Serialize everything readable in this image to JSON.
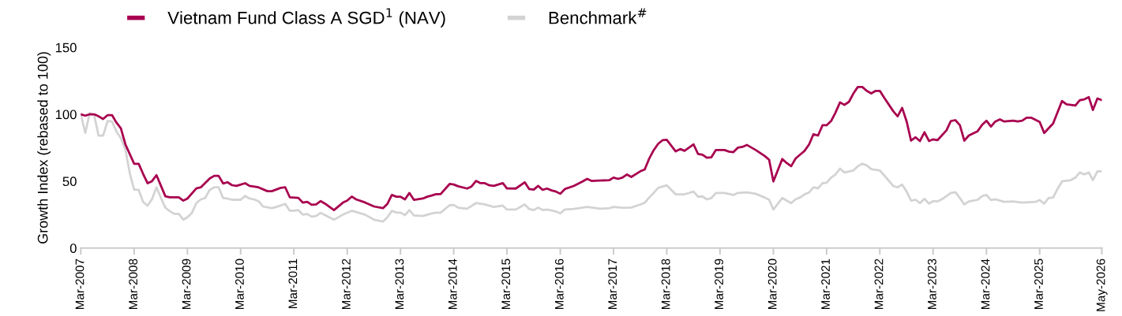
{
  "chart_data": {
    "type": "line",
    "ylabel": "Growth Index (rebased to 100)",
    "ylim": [
      0,
      150
    ],
    "yticks": [
      0,
      50,
      100,
      150
    ],
    "xlim": [
      "2007-03",
      "2026-05"
    ],
    "xticks": [
      {
        "value": "2007-03",
        "label": "Mar-2007"
      },
      {
        "value": "2008-03",
        "label": "Mar-2008"
      },
      {
        "value": "2009-03",
        "label": "Mar-2009"
      },
      {
        "value": "2010-03",
        "label": "Mar-2010"
      },
      {
        "value": "2011-03",
        "label": "Mar-2011"
      },
      {
        "value": "2012-03",
        "label": "Mar-2012"
      },
      {
        "value": "2013-03",
        "label": "Mar-2013"
      },
      {
        "value": "2014-03",
        "label": "Mar-2014"
      },
      {
        "value": "2015-03",
        "label": "Mar-2015"
      },
      {
        "value": "2016-03",
        "label": "Mar-2016"
      },
      {
        "value": "2017-03",
        "label": "Mar-2017"
      },
      {
        "value": "2018-03",
        "label": "Mar-2018"
      },
      {
        "value": "2019-03",
        "label": "Mar-2019"
      },
      {
        "value": "2020-03",
        "label": "Mar-2020"
      },
      {
        "value": "2021-03",
        "label": "Mar-2021"
      },
      {
        "value": "2022-03",
        "label": "Mar-2022"
      },
      {
        "value": "2023-03",
        "label": "Mar-2023"
      },
      {
        "value": "2024-03",
        "label": "Mar-2024"
      },
      {
        "value": "2025-03",
        "label": "Mar-2025"
      },
      {
        "value": "2026-05",
        "label": "May-2026"
      }
    ],
    "grid": false,
    "legend": "top",
    "marker": "none",
    "line_style": "solid",
    "series": [
      {
        "name": "Benchmark$^{#}$",
        "color": "#d3d3d3",
        "x": [
          "2007-03",
          "2007-04",
          "2007-05",
          "2007-06",
          "2007-07",
          "2007-08",
          "2007-09",
          "2007-10",
          "2007-11",
          "2007-12",
          "2008-01",
          "2008-02",
          "2008-03",
          "2008-04",
          "2008-05",
          "2008-06",
          "2008-07",
          "2008-08",
          "2008-09",
          "2008-10",
          "2008-11",
          "2008-12",
          "2009-01",
          "2009-02",
          "2009-03",
          "2009-04",
          "2009-05",
          "2009-06",
          "2009-07",
          "2009-08",
          "2009-09",
          "2009-10",
          "2009-11",
          "2009-12",
          "2010-01",
          "2010-03",
          "2010-04",
          "2010-05",
          "2010-06",
          "2010-07",
          "2010-08",
          "2010-10",
          "2010-11",
          "2011-01",
          "2011-02",
          "2011-03",
          "2011-04",
          "2011-05",
          "2011-06",
          "2011-07",
          "2011-08",
          "2011-09",
          "2011-10",
          "2011-12",
          "2012-02",
          "2012-04",
          "2012-07",
          "2012-09",
          "2012-11",
          "2012-12",
          "2013-01",
          "2013-02",
          "2013-03",
          "2013-04",
          "2013-05",
          "2013-06",
          "2013-08",
          "2013-10",
          "2013-11",
          "2013-12",
          "2014-02",
          "2014-03",
          "2014-04",
          "2014-06",
          "2014-08",
          "2014-10",
          "2014-12",
          "2015-02",
          "2015-03",
          "2015-05",
          "2015-07",
          "2015-08",
          "2015-09",
          "2015-10",
          "2015-11",
          "2015-12",
          "2016-02",
          "2016-03",
          "2016-04",
          "2016-06",
          "2016-09",
          "2016-12",
          "2017-02",
          "2017-03",
          "2017-05",
          "2017-07",
          "2017-09",
          "2017-10",
          "2017-11",
          "2017-12",
          "2018-01",
          "2018-03",
          "2018-05",
          "2018-07",
          "2018-09",
          "2018-10",
          "2018-11",
          "2018-12",
          "2019-01",
          "2019-02",
          "2019-04",
          "2019-06",
          "2019-07",
          "2019-09",
          "2019-11",
          "2020-01",
          "2020-02",
          "2020-03",
          "2020-05",
          "2020-07",
          "2020-08",
          "2020-09",
          "2020-10",
          "2020-11",
          "2020-12",
          "2021-01",
          "2021-02",
          "2021-03",
          "2021-04",
          "2021-05",
          "2021-06",
          "2021-07",
          "2021-09",
          "2021-10",
          "2021-11",
          "2021-12",
          "2022-01",
          "2022-03",
          "2022-04",
          "2022-06",
          "2022-07",
          "2022-08",
          "2022-09",
          "2022-10",
          "2022-11",
          "2022-12",
          "2023-01",
          "2023-02",
          "2023-03",
          "2023-04",
          "2023-05",
          "2023-07",
          "2023-08",
          "2023-09",
          "2023-10",
          "2023-11",
          "2024-01",
          "2024-02",
          "2024-03",
          "2024-04",
          "2024-05",
          "2024-07",
          "2024-09",
          "2024-11",
          "2025-02",
          "2025-03",
          "2025-04",
          "2025-05",
          "2025-06",
          "2025-07",
          "2025-08",
          "2025-10",
          "2025-11",
          "2025-12",
          "2026-01",
          "2026-02",
          "2026-03",
          "2026-04",
          "2026-05"
        ],
        "values": [
          100,
          86,
          101,
          99.4,
          84,
          84,
          95,
          94.7,
          87,
          82,
          73.7,
          55.5,
          43.7,
          43.5,
          34.5,
          31.7,
          36.5,
          45.4,
          37.4,
          30.2,
          27.5,
          25.6,
          25.6,
          21.2,
          23,
          26.3,
          33.6,
          36.4,
          37.4,
          43.5,
          45.4,
          45.4,
          37.4,
          37,
          36.1,
          36.1,
          39,
          37,
          36.4,
          35.1,
          31.1,
          29.8,
          30.7,
          33,
          27.9,
          27.9,
          28.4,
          25,
          25.4,
          23.5,
          24,
          26.3,
          24.6,
          21.2,
          25,
          27.9,
          25,
          21.2,
          19.8,
          23,
          27.9,
          26.5,
          26.5,
          24.6,
          28.4,
          24.4,
          24,
          25.9,
          26.5,
          26.5,
          32,
          32.2,
          30.2,
          29.4,
          33.6,
          32.6,
          30.7,
          31.7,
          28.8,
          28.8,
          32.6,
          29.2,
          28.4,
          30.3,
          28.4,
          28.8,
          27.3,
          25.9,
          28.8,
          29.2,
          30.7,
          29.4,
          29.8,
          30.7,
          30.1,
          30.3,
          32.6,
          33.9,
          37.8,
          41.2,
          45,
          46.9,
          40.2,
          40.2,
          42.2,
          38.4,
          38.6,
          36.4,
          37.4,
          41.2,
          41.2,
          39.7,
          41.2,
          41.6,
          40.6,
          37.8,
          36.1,
          28.8,
          37.4,
          33.6,
          36.5,
          37.8,
          40.2,
          41.6,
          45.4,
          44.6,
          48.5,
          48.8,
          52.7,
          55,
          59.4,
          56.5,
          58,
          61.2,
          63.1,
          61.8,
          59,
          58,
          54.2,
          46.4,
          45.4,
          47.5,
          42.2,
          35.5,
          36.1,
          33.6,
          36.8,
          33.2,
          35.1,
          34.9,
          36.5,
          41.2,
          41.8,
          37.4,
          32.6,
          34.9,
          36.1,
          38.9,
          39.7,
          35.9,
          36.5,
          34.5,
          34.9,
          33.9,
          34.5,
          35.9,
          33.2,
          37.4,
          37.8,
          44.1,
          49.8,
          50.8,
          52.7,
          56.5,
          55.1,
          56.5,
          50.8,
          57.4,
          57.4
        ]
      },
      {
        "name": "Vietnam Fund Class A SGD$^{1}$ (NAV)",
        "color": "#a8004f",
        "x": [
          "2007-03",
          "2007-04",
          "2007-05",
          "2007-06",
          "2007-07",
          "2007-08",
          "2007-09",
          "2007-10",
          "2007-11",
          "2007-12",
          "2008-01",
          "2008-03",
          "2008-04",
          "2008-05",
          "2008-06",
          "2008-07",
          "2008-08",
          "2008-09",
          "2008-10",
          "2008-11",
          "2009-01",
          "2009-02",
          "2009-03",
          "2009-05",
          "2009-06",
          "2009-08",
          "2009-09",
          "2009-10",
          "2009-11",
          "2009-12",
          "2010-01",
          "2010-02",
          "2010-04",
          "2010-05",
          "2010-07",
          "2010-09",
          "2010-10",
          "2010-12",
          "2011-01",
          "2011-02",
          "2011-04",
          "2011-05",
          "2011-06",
          "2011-07",
          "2011-08",
          "2011-09",
          "2011-10",
          "2011-12",
          "2012-02",
          "2012-03",
          "2012-04",
          "2012-05",
          "2012-07",
          "2012-09",
          "2012-11",
          "2012-12",
          "2013-01",
          "2013-02",
          "2013-03",
          "2013-04",
          "2013-05",
          "2013-06",
          "2013-08",
          "2013-09",
          "2013-10",
          "2013-11",
          "2013-12",
          "2014-02",
          "2014-03",
          "2014-04",
          "2014-06",
          "2014-07",
          "2014-08",
          "2014-09",
          "2014-10",
          "2014-11",
          "2014-12",
          "2015-02",
          "2015-03",
          "2015-05",
          "2015-07",
          "2015-08",
          "2015-09",
          "2015-10",
          "2015-11",
          "2015-12",
          "2016-01",
          "2016-02",
          "2016-03",
          "2016-04",
          "2016-06",
          "2016-08",
          "2016-09",
          "2016-10",
          "2017-02",
          "2017-03",
          "2017-04",
          "2017-05",
          "2017-06",
          "2017-07",
          "2017-09",
          "2017-10",
          "2017-11",
          "2017-12",
          "2018-01",
          "2018-02",
          "2018-03",
          "2018-05",
          "2018-06",
          "2018-07",
          "2018-09",
          "2018-10",
          "2018-11",
          "2018-12",
          "2019-01",
          "2019-02",
          "2019-04",
          "2019-05",
          "2019-06",
          "2019-07",
          "2019-08",
          "2019-09",
          "2019-11",
          "2020-01",
          "2020-02",
          "2020-03",
          "2020-04",
          "2020-05",
          "2020-06",
          "2020-07",
          "2020-08",
          "2020-10",
          "2020-11",
          "2020-12",
          "2021-01",
          "2021-02",
          "2021-03",
          "2021-04",
          "2021-05",
          "2021-06",
          "2021-07",
          "2021-08",
          "2021-09",
          "2021-10",
          "2021-11",
          "2021-12",
          "2022-01",
          "2022-02",
          "2022-03",
          "2022-04",
          "2022-06",
          "2022-07",
          "2022-08",
          "2022-09",
          "2022-10",
          "2022-11",
          "2022-12",
          "2023-01",
          "2023-02",
          "2023-03",
          "2023-04",
          "2023-06",
          "2023-07",
          "2023-08",
          "2023-09",
          "2023-10",
          "2023-11",
          "2024-01",
          "2024-02",
          "2024-03",
          "2024-04",
          "2024-05",
          "2024-06",
          "2024-07",
          "2024-09",
          "2024-10",
          "2024-11",
          "2024-12",
          "2025-01",
          "2025-03",
          "2025-04",
          "2025-06",
          "2025-08",
          "2025-09",
          "2025-11",
          "2025-12",
          "2026-01",
          "2026-02",
          "2026-03",
          "2026-04",
          "2026-05"
        ],
        "values": [
          100,
          99,
          100,
          100,
          98.5,
          96.5,
          99.4,
          99.4,
          93.7,
          89.5,
          77.5,
          63,
          63,
          55.5,
          48.5,
          50,
          54.5,
          46.5,
          38.7,
          38,
          38,
          35.5,
          37,
          44.6,
          45.4,
          52,
          54,
          54,
          48.3,
          49.2,
          47,
          46.5,
          48.5,
          46.5,
          45.4,
          42.5,
          42.5,
          45,
          45.4,
          38,
          37.5,
          34,
          34.5,
          32.3,
          32.7,
          35.1,
          33.2,
          28.4,
          34,
          35.5,
          38.5,
          36.4,
          34.1,
          31.1,
          29.8,
          33,
          39.7,
          38.4,
          38.4,
          36.4,
          41.2,
          36.1,
          37,
          38.4,
          39.3,
          40.3,
          40.3,
          47.9,
          47.5,
          46.2,
          44.5,
          46,
          50.2,
          48.5,
          48.5,
          46.9,
          46.5,
          48.5,
          44.6,
          44.5,
          49.2,
          44.1,
          43.7,
          46.5,
          43.5,
          44.5,
          43.1,
          42.2,
          40.6,
          44.1,
          46.4,
          49.8,
          51.7,
          50.2,
          50.8,
          52.7,
          51.7,
          52.7,
          55,
          53.2,
          57.4,
          58.8,
          67,
          73.1,
          77.9,
          80.7,
          80.9,
          72.3,
          74,
          72.7,
          77.5,
          70.4,
          69.8,
          67.5,
          67.9,
          73.3,
          73.3,
          72.1,
          71.7,
          75,
          75.6,
          77.1,
          73.3,
          68.9,
          66,
          49.8,
          58.4,
          66.6,
          63.5,
          61.2,
          67,
          72.7,
          77.5,
          85.1,
          84.1,
          91.8,
          91.8,
          95,
          101.3,
          108.9,
          107,
          109.3,
          115.6,
          120.4,
          120.4,
          117.5,
          115.6,
          117.5,
          117.5,
          112.2,
          102.3,
          98.5,
          104.8,
          94.6,
          80.3,
          82.8,
          80,
          86.6,
          80,
          81.3,
          80.7,
          88,
          95,
          95.6,
          91.8,
          80.3,
          84.1,
          87.4,
          92.2,
          95.2,
          90.8,
          94.6,
          96.2,
          94.6,
          95.2,
          94.6,
          95.2,
          97.5,
          97.5,
          94.3,
          86,
          93.1,
          109.9,
          107.4,
          106.5,
          110.5,
          111.2,
          112.8,
          103.2,
          111.8,
          110.6
        ]
      }
    ]
  }
}
